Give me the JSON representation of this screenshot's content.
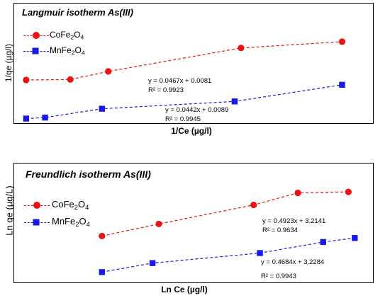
{
  "colors": {
    "red": "#ee1111",
    "blue": "#1a1ae6"
  },
  "chart_data": [
    {
      "type": "scatter",
      "title": "Langmuir isotherm As(III)",
      "xlabel": "1/Ce (µg/l)",
      "ylabel": "1/qe (µg/l)",
      "grid": false,
      "legend_position": "top-left",
      "x_ticks_shown": false,
      "y_ticks_shown": false,
      "series": [
        {
          "name_base": "CoFe",
          "name_sub1": "2",
          "name_mid": "O",
          "name_sub2": "4",
          "color": "#ee1111",
          "marker": "circle",
          "x": [
            0.2,
            0.9,
            1.5,
            3.6,
            5.2
          ],
          "y": [
            0.0174,
            0.0176,
            0.0208,
            0.0301,
            0.0326
          ],
          "trendline": {
            "equation": "y = 0.0467x + 0.0081",
            "r2": "R² = 0.9923"
          }
        },
        {
          "name_base": "MnFe",
          "name_sub1": "2",
          "name_mid": "O",
          "name_sub2": "4",
          "color": "#1a1ae6",
          "marker": "square",
          "x": [
            0.2,
            0.5,
            1.4,
            3.5,
            5.2
          ],
          "y": [
            0.0021,
            0.0025,
            0.006,
            0.0089,
            0.0155
          ],
          "trendline": {
            "equation": "y = 0.0442x + 0.0089",
            "r2": "R² = 0.9945"
          }
        }
      ],
      "xlim": [
        0,
        5.7
      ],
      "ylim": [
        0,
        0.048
      ]
    },
    {
      "type": "scatter",
      "title": "Freundlich isotherm As(III)",
      "xlabel": "Ln Ce (µg/l)",
      "ylabel": "Ln qe (µg/L)",
      "grid": false,
      "legend_position": "top-left",
      "x_ticks_shown": false,
      "y_ticks_shown": false,
      "series": [
        {
          "name_base": "CoFe",
          "name_sub1": "2",
          "name_mid": "O",
          "name_sub2": "4",
          "color": "#ee1111",
          "marker": "circle",
          "x": [
            1.4,
            2.3,
            3.8,
            4.5,
            5.3
          ],
          "y": [
            3.57,
            3.69,
            3.88,
            4.0,
            4.01
          ],
          "trendline": {
            "equation": "y = 0.4923x + 3.2141",
            "r2": "R² = 0.9634"
          }
        },
        {
          "name_base": "MnFe",
          "name_sub1": "2",
          "name_mid": "O",
          "name_sub2": "4",
          "color": "#1a1ae6",
          "marker": "square",
          "x": [
            1.4,
            2.2,
            3.9,
            4.9,
            5.4
          ],
          "y": [
            3.21,
            3.3,
            3.4,
            3.51,
            3.55
          ],
          "trendline": {
            "equation": "y = 0.4684x + 3.2284",
            "r2": "R² = 0.9943"
          }
        }
      ],
      "xlim": [
        0,
        5.7
      ],
      "ylim": [
        3.1,
        4.3
      ]
    }
  ]
}
